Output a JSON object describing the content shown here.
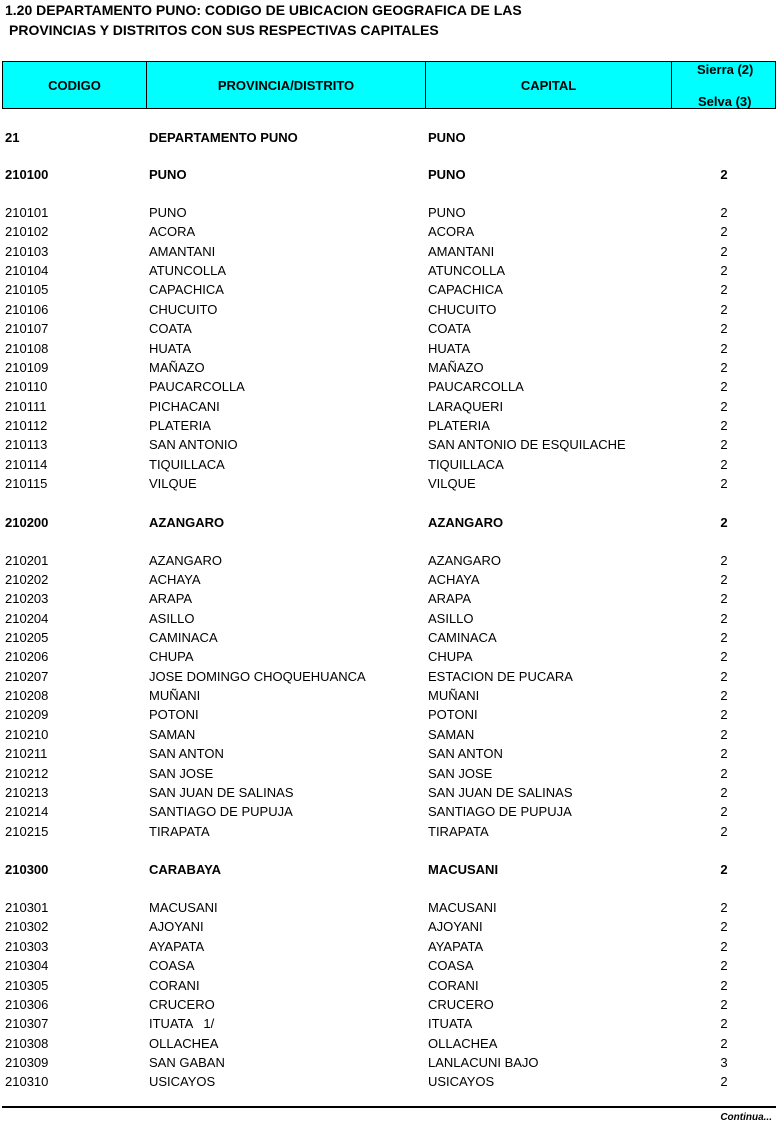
{
  "title": [
    "1.20 DEPARTAMENTO PUNO: CODIGO DE UBICACION GEOGRAFICA DE LAS",
    "PROVINCIAS Y DISTRITOS CON SUS RESPECTIVAS CAPITALES"
  ],
  "header": {
    "code": "CODIGO",
    "name": "PROVINCIA/DISTRITO",
    "capital": "CAPITAL",
    "region": [
      "Sierra (2)",
      "Selva (3)"
    ]
  },
  "department": [
    "21",
    "DEPARTAMENTO PUNO",
    "PUNO"
  ],
  "provinces": [
    {
      "row": [
        "210100",
        "PUNO",
        "PUNO",
        2
      ],
      "districts": [
        [
          "210101",
          "PUNO",
          "PUNO",
          2
        ],
        [
          "210102",
          "ACORA",
          "ACORA",
          2
        ],
        [
          "210103",
          "AMANTANI",
          "AMANTANI",
          2
        ],
        [
          "210104",
          "ATUNCOLLA",
          "ATUNCOLLA",
          2
        ],
        [
          "210105",
          "CAPACHICA",
          "CAPACHICA",
          2
        ],
        [
          "210106",
          "CHUCUITO",
          "CHUCUITO",
          2
        ],
        [
          "210107",
          "COATA",
          "COATA",
          2
        ],
        [
          "210108",
          "HUATA",
          "HUATA",
          2
        ],
        [
          "210109",
          "MAÑAZO",
          "MAÑAZO",
          2
        ],
        [
          "210110",
          "PAUCARCOLLA",
          "PAUCARCOLLA",
          2
        ],
        [
          "210111",
          "PICHACANI",
          "LARAQUERI",
          2
        ],
        [
          "210112",
          "PLATERIA",
          "PLATERIA",
          2
        ],
        [
          "210113",
          "SAN ANTONIO",
          "SAN ANTONIO DE ESQUILACHE",
          2
        ],
        [
          "210114",
          "TIQUILLACA",
          "TIQUILLACA",
          2
        ],
        [
          "210115",
          "VILQUE",
          "VILQUE",
          2
        ]
      ]
    },
    {
      "row": [
        "210200",
        "AZANGARO",
        "AZANGARO",
        2
      ],
      "districts": [
        [
          "210201",
          "AZANGARO",
          "AZANGARO",
          2
        ],
        [
          "210202",
          "ACHAYA",
          "ACHAYA",
          2
        ],
        [
          "210203",
          "ARAPA",
          "ARAPA",
          2
        ],
        [
          "210204",
          "ASILLO",
          "ASILLO",
          2
        ],
        [
          "210205",
          "CAMINACA",
          "CAMINACA",
          2
        ],
        [
          "210206",
          "CHUPA",
          "CHUPA",
          2
        ],
        [
          "210207",
          "JOSE DOMINGO CHOQUEHUANCA",
          "ESTACION DE PUCARA",
          2
        ],
        [
          "210208",
          "MUÑANI",
          "MUÑANI",
          2
        ],
        [
          "210209",
          "POTONI",
          "POTONI",
          2
        ],
        [
          "210210",
          "SAMAN",
          "SAMAN",
          2
        ],
        [
          "210211",
          "SAN ANTON",
          "SAN ANTON",
          2
        ],
        [
          "210212",
          "SAN JOSE",
          "SAN JOSE",
          2
        ],
        [
          "210213",
          "SAN JUAN DE SALINAS",
          "SAN JUAN DE SALINAS",
          2
        ],
        [
          "210214",
          "SANTIAGO DE PUPUJA",
          "SANTIAGO DE PUPUJA",
          2
        ],
        [
          "210215",
          "TIRAPATA",
          "TIRAPATA",
          2
        ]
      ]
    },
    {
      "row": [
        "210300",
        "CARABAYA",
        "MACUSANI",
        2
      ],
      "districts": [
        [
          "210301",
          "MACUSANI",
          "MACUSANI",
          2
        ],
        [
          "210302",
          "AJOYANI",
          "AJOYANI",
          2
        ],
        [
          "210303",
          "AYAPATA",
          "AYAPATA",
          2
        ],
        [
          "210304",
          "COASA",
          "COASA",
          2
        ],
        [
          "210305",
          "CORANI",
          "CORANI",
          2
        ],
        [
          "210306",
          "CRUCERO",
          "CRUCERO",
          2
        ],
        [
          "210307",
          "ITUATA   1/",
          "ITUATA",
          2
        ],
        [
          "210308",
          "OLLACHEA",
          "OLLACHEA",
          2
        ],
        [
          "210309",
          "SAN GABAN",
          "LANLACUNI BAJO",
          3
        ],
        [
          "210310",
          "USICAYOS",
          "USICAYOS",
          2
        ]
      ]
    }
  ],
  "footer": "Continua..."
}
